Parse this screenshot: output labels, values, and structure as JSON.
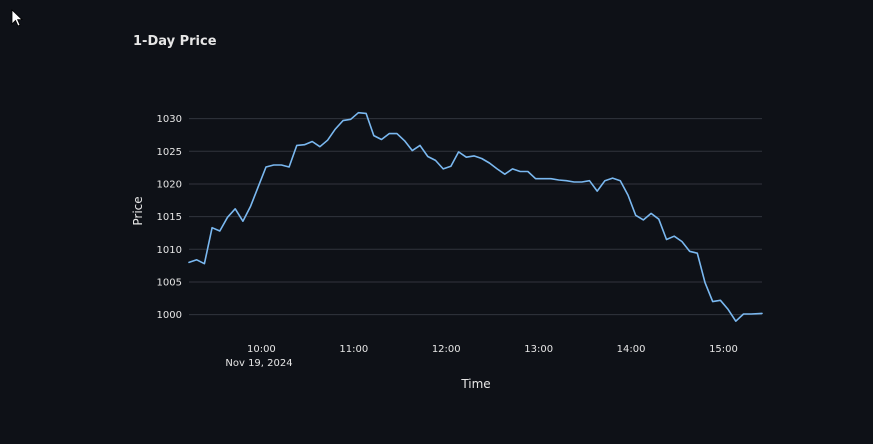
{
  "chart_data": {
    "type": "line",
    "title": "1-Day Price",
    "xlabel": "Time",
    "ylabel": "Price",
    "date_label": "Nov 19, 2024",
    "x_ticks": [
      {
        "time": "10:00",
        "label": "10:00"
      },
      {
        "time": "11:00",
        "label": "11:00"
      },
      {
        "time": "12:00",
        "label": "12:00"
      },
      {
        "time": "13:00",
        "label": "13:00"
      },
      {
        "time": "14:00",
        "label": "14:00"
      },
      {
        "time": "15:00",
        "label": "15:00"
      }
    ],
    "y_ticks": [
      1000,
      1005,
      1010,
      1015,
      1020,
      1025,
      1030
    ],
    "xlim": [
      "09:13",
      "15:25"
    ],
    "ylim": [
      997.5,
      1033
    ],
    "grid": true,
    "line_color": "#7ab8f0",
    "series": [
      {
        "points": [
          [
            "09:13",
            1008.0
          ],
          [
            "09:18",
            1008.4
          ],
          [
            "09:23",
            1007.8
          ],
          [
            "09:28",
            1013.3
          ],
          [
            "09:33",
            1012.8
          ],
          [
            "09:38",
            1014.9
          ],
          [
            "09:43",
            1016.2
          ],
          [
            "09:48",
            1014.3
          ],
          [
            "09:53",
            1016.6
          ],
          [
            "09:58",
            1019.6
          ],
          [
            "10:03",
            1022.6
          ],
          [
            "10:08",
            1022.9
          ],
          [
            "10:13",
            1022.9
          ],
          [
            "10:18",
            1022.6
          ],
          [
            "10:23",
            1025.9
          ],
          [
            "10:28",
            1026.0
          ],
          [
            "10:33",
            1026.5
          ],
          [
            "10:38",
            1025.7
          ],
          [
            "10:43",
            1026.7
          ],
          [
            "10:48",
            1028.4
          ],
          [
            "10:53",
            1029.7
          ],
          [
            "10:58",
            1029.9
          ],
          [
            "11:03",
            1030.9
          ],
          [
            "11:08",
            1030.8
          ],
          [
            "11:13",
            1027.4
          ],
          [
            "11:18",
            1026.8
          ],
          [
            "11:23",
            1027.7
          ],
          [
            "11:28",
            1027.7
          ],
          [
            "11:33",
            1026.6
          ],
          [
            "11:38",
            1025.1
          ],
          [
            "11:43",
            1025.9
          ],
          [
            "11:48",
            1024.2
          ],
          [
            "11:53",
            1023.6
          ],
          [
            "11:58",
            1022.3
          ],
          [
            "12:03",
            1022.7
          ],
          [
            "12:08",
            1024.9
          ],
          [
            "12:13",
            1024.1
          ],
          [
            "12:18",
            1024.3
          ],
          [
            "12:23",
            1023.9
          ],
          [
            "12:28",
            1023.2
          ],
          [
            "12:33",
            1022.3
          ],
          [
            "12:38",
            1021.5
          ],
          [
            "12:43",
            1022.3
          ],
          [
            "12:48",
            1021.9
          ],
          [
            "12:53",
            1021.9
          ],
          [
            "12:58",
            1020.8
          ],
          [
            "13:03",
            1020.8
          ],
          [
            "13:08",
            1020.8
          ],
          [
            "13:13",
            1020.6
          ],
          [
            "13:18",
            1020.5
          ],
          [
            "13:23",
            1020.3
          ],
          [
            "13:28",
            1020.3
          ],
          [
            "13:33",
            1020.5
          ],
          [
            "13:38",
            1018.9
          ],
          [
            "13:43",
            1020.5
          ],
          [
            "13:48",
            1020.9
          ],
          [
            "13:53",
            1020.5
          ],
          [
            "13:58",
            1018.3
          ],
          [
            "14:03",
            1015.2
          ],
          [
            "14:08",
            1014.5
          ],
          [
            "14:13",
            1015.5
          ],
          [
            "14:18",
            1014.6
          ],
          [
            "14:23",
            1011.5
          ],
          [
            "14:28",
            1012.0
          ],
          [
            "14:33",
            1011.2
          ],
          [
            "14:38",
            1009.7
          ],
          [
            "14:43",
            1009.4
          ],
          [
            "14:48",
            1004.9
          ],
          [
            "14:53",
            1002.0
          ],
          [
            "14:58",
            1002.2
          ],
          [
            "15:03",
            1000.8
          ],
          [
            "15:08",
            999.0
          ],
          [
            "15:13",
            1000.1
          ],
          [
            "15:18",
            1000.1
          ],
          [
            "15:25",
            1000.2
          ]
        ]
      }
    ]
  }
}
